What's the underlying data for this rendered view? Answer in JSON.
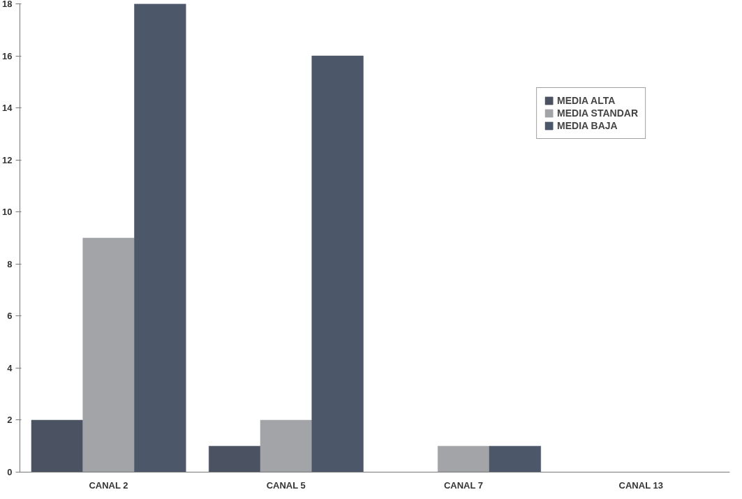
{
  "chart_data": {
    "type": "bar",
    "categories": [
      "CANAL 2",
      "CANAL 5",
      "CANAL 7",
      "CANAL 13"
    ],
    "series": [
      {
        "name": "MEDIA ALTA",
        "color": "#4b5262",
        "values": [
          2,
          1,
          0,
          0
        ]
      },
      {
        "name": "MEDIA STANDAR",
        "color": "#a3a4a8",
        "values": [
          9,
          2,
          1,
          0
        ]
      },
      {
        "name": "MEDIA BAJA",
        "color": "#4d576a",
        "values": [
          18,
          16,
          1,
          0
        ]
      }
    ],
    "ylim": [
      0,
      18
    ],
    "yticks": [
      0,
      2,
      4,
      6,
      8,
      10,
      12,
      14,
      16,
      18
    ],
    "grid": false,
    "legend": "top right"
  }
}
